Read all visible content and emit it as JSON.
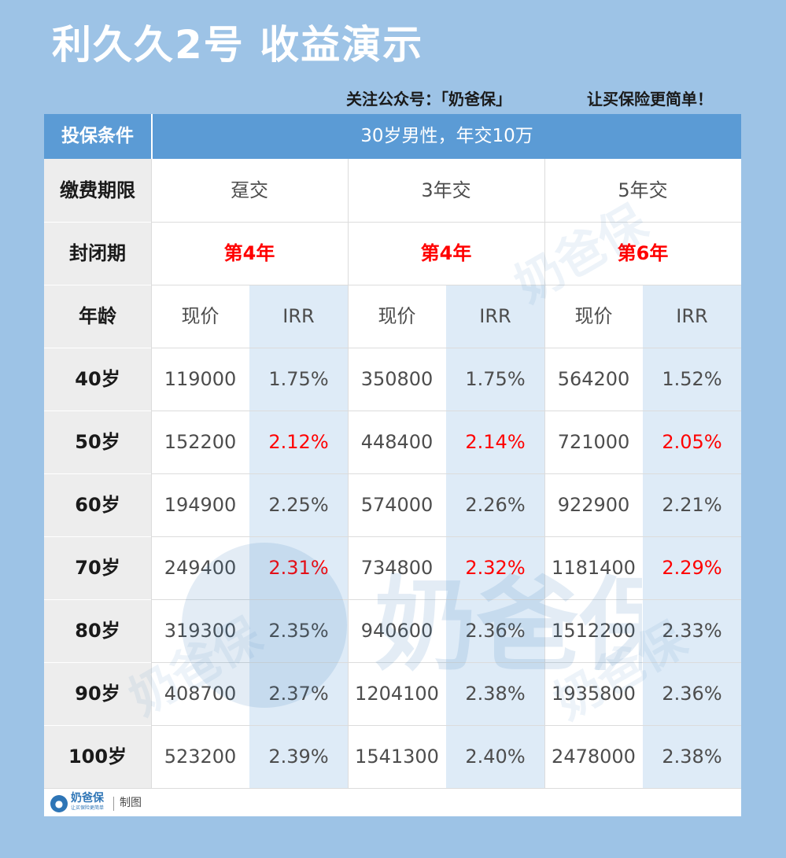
{
  "title": "利久久2号 收益演示",
  "follow_prefix": "关注公众号：「奶爸保」",
  "slogan": "让买保险更简单！",
  "condition": {
    "label": "投保条件",
    "value": "30岁男性，年交10万"
  },
  "payment": {
    "label": "缴费期限",
    "options": [
      "趸交",
      "3年交",
      "5年交"
    ]
  },
  "lockup": {
    "label": "封闭期",
    "values": [
      "第4年",
      "第4年",
      "第6年"
    ]
  },
  "age_header": "年龄",
  "col_headers": [
    "现价",
    "IRR"
  ],
  "rows": [
    {
      "age": "40岁",
      "values": [
        "119000",
        "1.75%",
        "350800",
        "1.75%",
        "564200",
        "1.52%"
      ]
    },
    {
      "age": "50岁",
      "values": [
        "152200",
        "2.12%",
        "448400",
        "2.14%",
        "721000",
        "2.05%"
      ]
    },
    {
      "age": "60岁",
      "values": [
        "194900",
        "2.25%",
        "574000",
        "2.26%",
        "922900",
        "2.21%"
      ]
    },
    {
      "age": "70岁",
      "values": [
        "249400",
        "2.31%",
        "734800",
        "2.32%",
        "1181400",
        "2.29%"
      ]
    },
    {
      "age": "80岁",
      "values": [
        "319300",
        "2.35%",
        "940600",
        "2.36%",
        "1512200",
        "2.33%"
      ]
    },
    {
      "age": "90岁",
      "values": [
        "408700",
        "2.37%",
        "1204100",
        "2.38%",
        "1935800",
        "2.36%"
      ]
    },
    {
      "age": "100岁",
      "values": [
        "523200",
        "2.39%",
        "1541300",
        "2.40%",
        "2478000",
        "2.38%"
      ]
    }
  ],
  "highlight_rows": [
    1,
    3
  ],
  "footer": {
    "brand": "奶爸保",
    "brand_sub": "让买保险更简单",
    "made": "制图"
  },
  "watermark_text": "奶爸保",
  "colors": {
    "background": "#9dc3e6",
    "header_blue": "#5b9bd5",
    "irr_column_shade": "#deebf7",
    "label_column": "#ededed",
    "highlight_red": "#ff0000"
  }
}
